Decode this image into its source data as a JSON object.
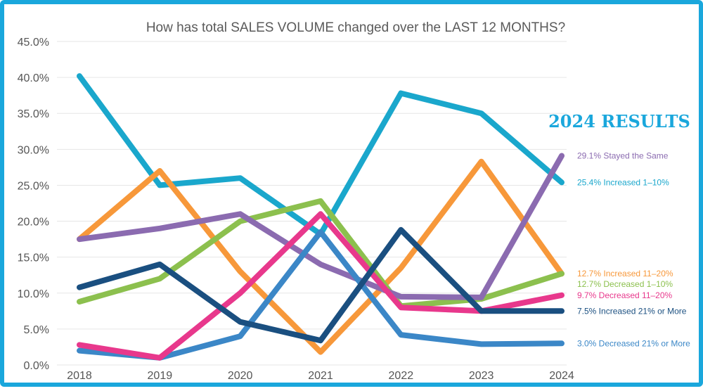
{
  "chart_data": {
    "type": "line",
    "title": "How has total SALES VOLUME changed over the LAST 12 MONTHS?",
    "badge": "2024 RESULTS",
    "xlabel": "",
    "ylabel": "",
    "ylim": [
      0,
      45
    ],
    "yticks": [
      0,
      5,
      10,
      15,
      20,
      25,
      30,
      35,
      40,
      45
    ],
    "ytick_labels": [
      "0.0%",
      "5.0%",
      "10.0%",
      "15.0%",
      "20.0%",
      "25.0%",
      "30.0%",
      "35.0%",
      "40.0%",
      "45.0%"
    ],
    "grid": true,
    "categories": [
      "2018",
      "2019",
      "2020",
      "2021",
      "2022",
      "2023",
      "2024"
    ],
    "series": [
      {
        "name": "Increased 1–10%",
        "legend": "25.4% Increased 1–10%",
        "color": "#1aa7cc",
        "values": [
          40.2,
          25.0,
          26.0,
          18.2,
          37.8,
          35.0,
          25.4
        ]
      },
      {
        "name": "Increased 11–20%",
        "legend": "12.7% Increased 11–20%",
        "color": "#f7983a",
        "values": [
          17.5,
          27.0,
          13.0,
          1.8,
          13.5,
          28.3,
          12.7
        ]
      },
      {
        "name": "Decreased 1–10%",
        "legend": "12.7% Decreased 1–10%",
        "color": "#8cc04e",
        "values": [
          8.8,
          12.0,
          20.0,
          22.8,
          8.2,
          9.2,
          12.7
        ]
      },
      {
        "name": "Stayed the Same",
        "legend": "29.1% Stayed the Same",
        "color": "#8b6bb0",
        "values": [
          17.5,
          19.0,
          21.0,
          14.0,
          9.5,
          9.4,
          29.1
        ]
      },
      {
        "name": "Decreased 21% or More",
        "legend": "3.0% Decreased 21% or More",
        "color": "#3b87c7",
        "values": [
          2.0,
          1.0,
          4.0,
          18.5,
          4.2,
          2.9,
          3.0
        ]
      },
      {
        "name": "Decreased 11–20%",
        "legend": "9.7% Decreased 11–20%",
        "color": "#e8388c",
        "values": [
          2.8,
          1.0,
          10.0,
          21.0,
          8.0,
          7.5,
          9.7
        ]
      },
      {
        "name": "Increased 21% or More",
        "legend": "7.5% Increased 21% or More",
        "color": "#1a4f80",
        "values": [
          10.8,
          14.0,
          6.0,
          3.4,
          18.8,
          7.5,
          7.5
        ]
      }
    ]
  }
}
